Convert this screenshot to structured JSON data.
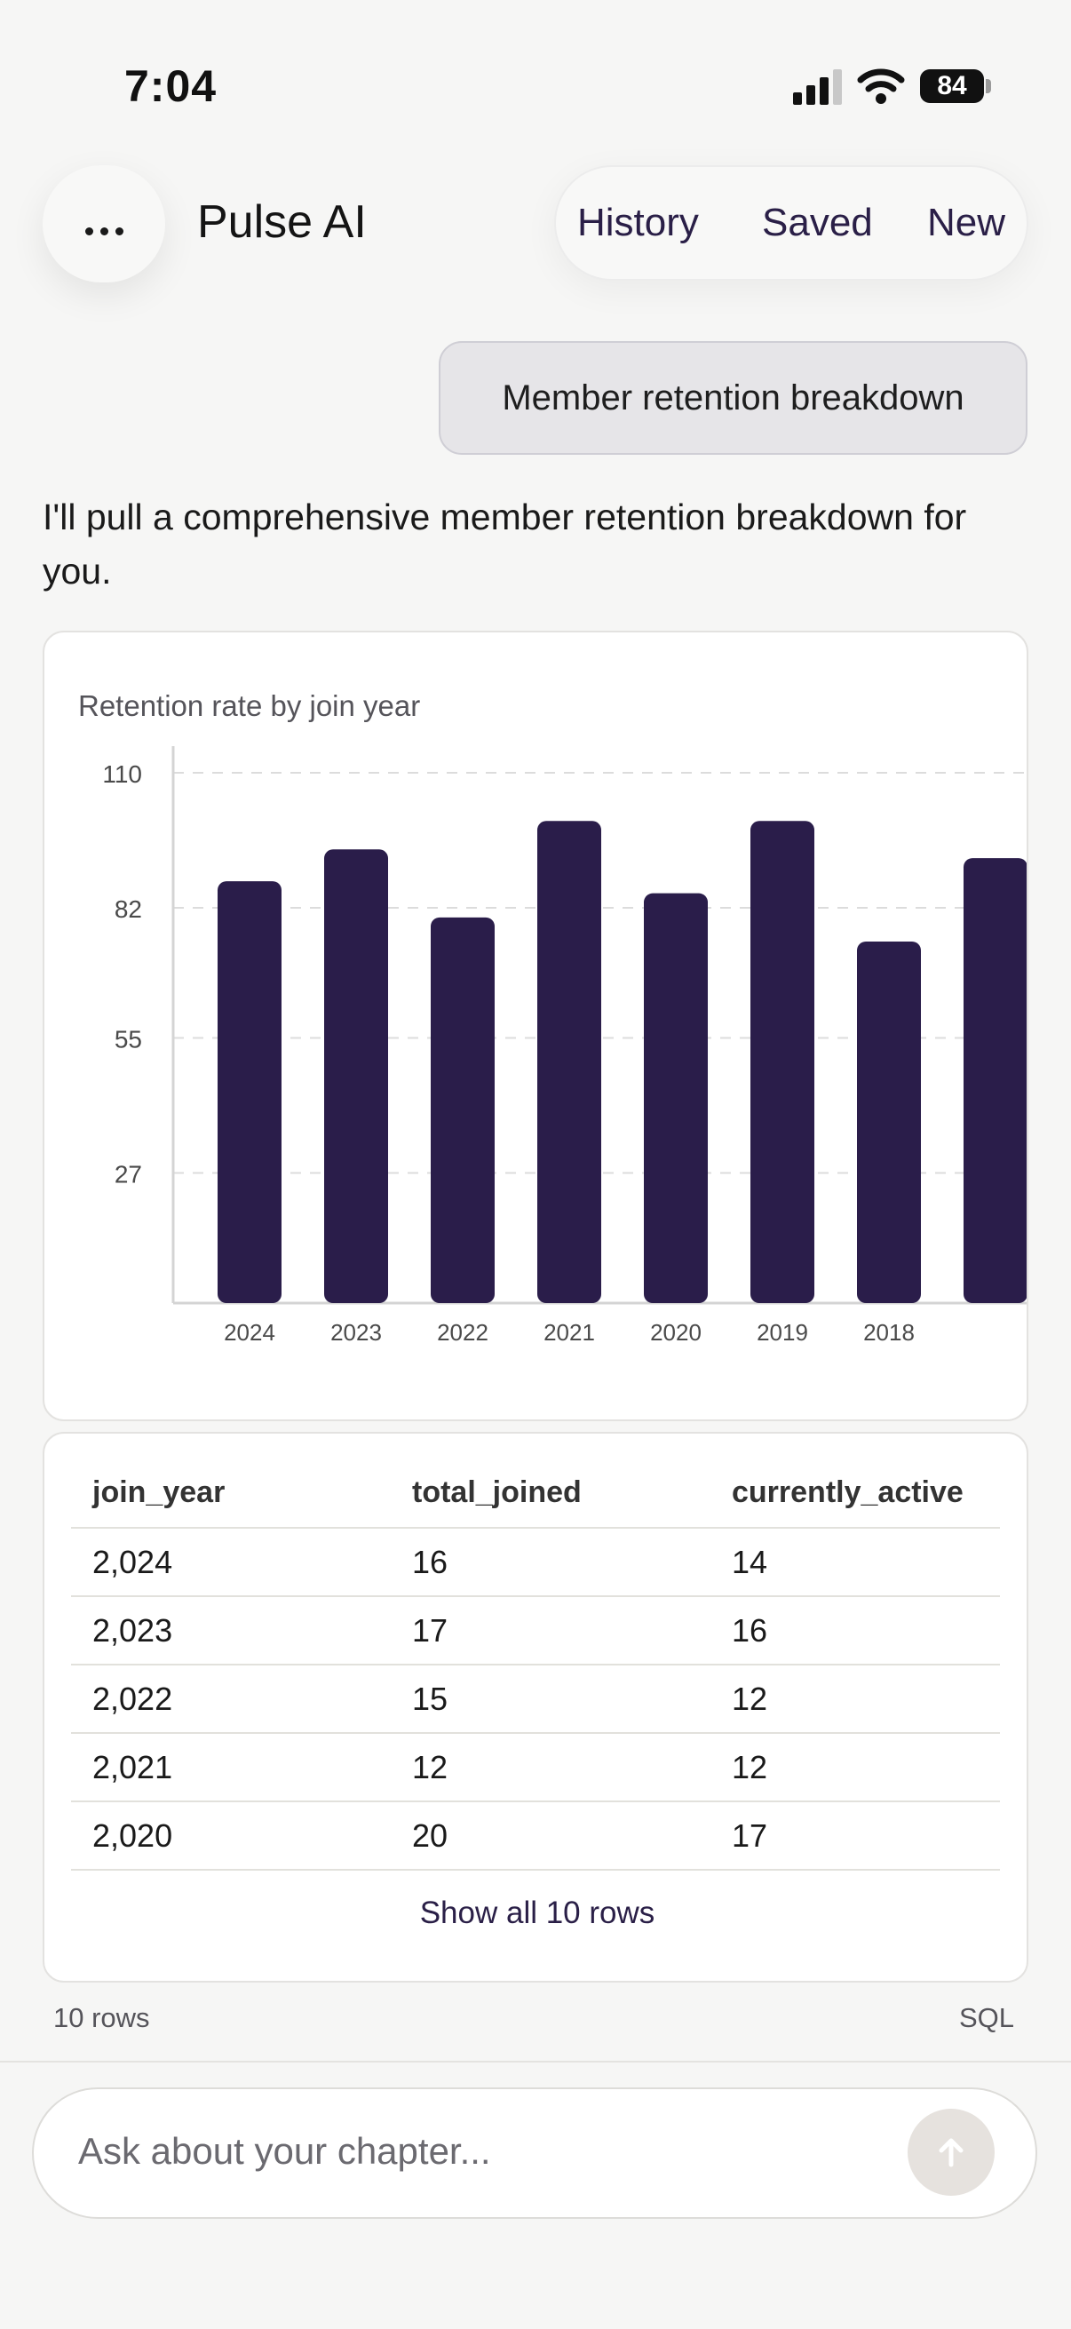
{
  "status_bar": {
    "time": "7:04",
    "battery": "84"
  },
  "header": {
    "title": "Pulse AI",
    "nav": [
      "History",
      "Saved",
      "New"
    ]
  },
  "conversation": {
    "user_message": "Member retention breakdown",
    "assistant_intro": "I'll pull a comprehensive member retention breakdown for you."
  },
  "chart": {
    "title": "Retention rate by join year"
  },
  "chart_data": {
    "type": "bar",
    "title": "Retention rate by join year",
    "categories": [
      "2024",
      "2023",
      "2022",
      "2021",
      "2020",
      "2019",
      "2018"
    ],
    "values": [
      87.5,
      94.1,
      80,
      100,
      85,
      100,
      75
    ],
    "extra_bar_partially_visible": 92.3,
    "y_ticks": [
      "110",
      "82",
      "55",
      "27"
    ],
    "ylim": [
      0,
      110
    ],
    "grid": true,
    "legend": "none"
  },
  "table": {
    "columns": [
      "join_year",
      "total_joined",
      "currently_active"
    ],
    "rows": [
      [
        "2,024",
        "16",
        "14"
      ],
      [
        "2,023",
        "17",
        "16"
      ],
      [
        "2,022",
        "15",
        "12"
      ],
      [
        "2,021",
        "12",
        "12"
      ],
      [
        "2,020",
        "20",
        "17"
      ]
    ],
    "show_all_label": "Show all 10 rows"
  },
  "result_meta": {
    "row_count": "10 rows",
    "sql_label": "SQL"
  },
  "composer": {
    "placeholder": "Ask about your chapter..."
  },
  "colors": {
    "accent": "#2a1f47",
    "bar": "#2a1d4a",
    "background": "#f6f6f5"
  },
  "icons": {
    "menu": "more-horizontal-icon",
    "send": "arrow-up-icon"
  }
}
